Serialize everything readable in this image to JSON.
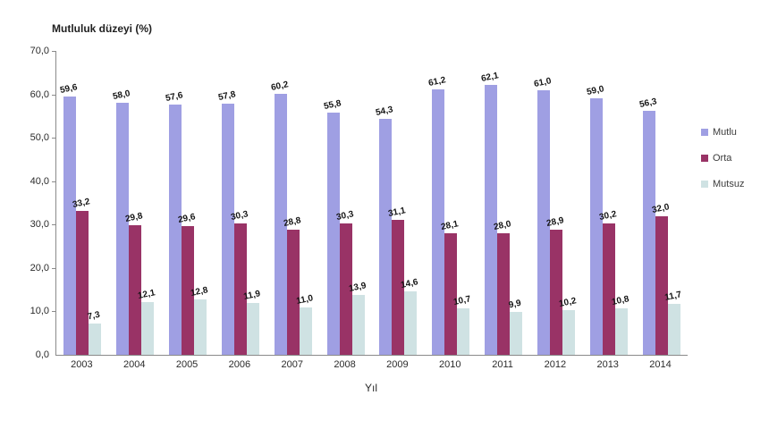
{
  "chart_data": {
    "type": "bar",
    "title": "Mutluluk düzeyi (%)",
    "xlabel": "Yıl",
    "ylabel": "Mutluluk düzeyi (%)",
    "categories": [
      "2003",
      "2004",
      "2005",
      "2006",
      "2007",
      "2008",
      "2009",
      "2010",
      "2011",
      "2012",
      "2013",
      "2014"
    ],
    "ylim": [
      0,
      70
    ],
    "ytick_step": 10,
    "y_tick_labels": [
      "0,0",
      "10,0",
      "20,0",
      "30,0",
      "40,0",
      "50,0",
      "60,0",
      "70,0"
    ],
    "grid": false,
    "legend_position": "right",
    "decimal_separator": ",",
    "series": [
      {
        "name": "Mutlu",
        "color": "#9f9fe3",
        "values": [
          59.6,
          58.0,
          57.6,
          57.8,
          60.2,
          55.8,
          54.3,
          61.2,
          62.1,
          61.0,
          59.0,
          56.3
        ],
        "labels": [
          "59,6",
          "58,0",
          "57,6",
          "57,8",
          "60,2",
          "55,8",
          "54,3",
          "61,2",
          "62,1",
          "61,0",
          "59,0",
          "56,3"
        ]
      },
      {
        "name": "Orta",
        "color": "#993366",
        "values": [
          33.2,
          29.8,
          29.6,
          30.3,
          28.8,
          30.3,
          31.1,
          28.1,
          28.0,
          28.9,
          30.2,
          32.0
        ],
        "labels": [
          "33,2",
          "29,8",
          "29,6",
          "30,3",
          "28,8",
          "30,3",
          "31,1",
          "28,1",
          "28,0",
          "28,9",
          "30,2",
          "32,0"
        ]
      },
      {
        "name": "Mutsuz",
        "color": "#cfe2e3",
        "values": [
          7.3,
          12.1,
          12.8,
          11.9,
          11.0,
          13.9,
          14.6,
          10.7,
          9.9,
          10.2,
          10.8,
          11.7
        ],
        "labels": [
          "7,3",
          "12,1",
          "12,8",
          "11,9",
          "11,0",
          "13,9",
          "14,6",
          "10,7",
          "9,9",
          "10,2",
          "10,8",
          "11,7"
        ]
      }
    ],
    "axis_color": "#8a8a8a"
  }
}
